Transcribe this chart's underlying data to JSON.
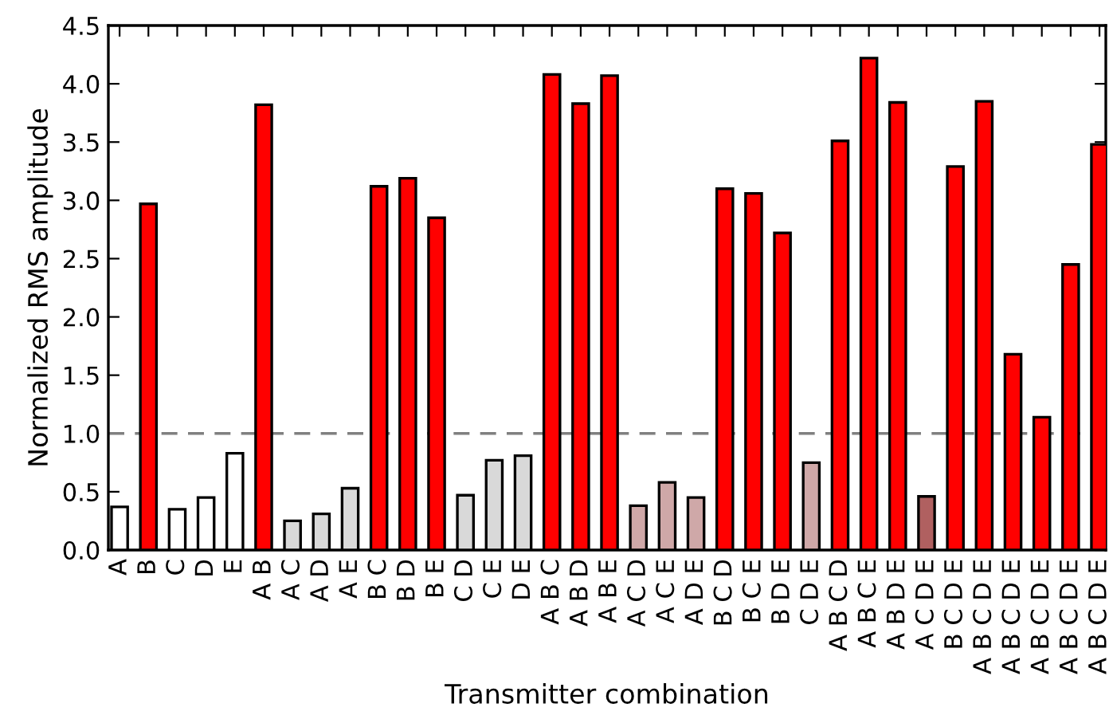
{
  "chart_data": {
    "type": "bar",
    "xlabel": "Transmitter combination",
    "ylabel": "Normalized RMS amplitude",
    "categories": [
      "A",
      "B",
      "C",
      "D",
      "E",
      "A B",
      "A C",
      "A D",
      "A E",
      "B C",
      "B D",
      "B E",
      "C D",
      "C E",
      "D E",
      "A B C",
      "A B D",
      "A B E",
      "A C D",
      "A C E",
      "A D E",
      "B C D",
      "B C E",
      "B D E",
      "C D E",
      "A B C D",
      "A B C E",
      "A B D E",
      "A C D E",
      "B C D E",
      "A B C D E",
      "A B C D E",
      "A B C D E",
      "A B C D E",
      "A B C D E"
    ],
    "values": [
      0.37,
      2.97,
      0.35,
      0.45,
      0.83,
      3.82,
      0.25,
      0.31,
      0.53,
      3.12,
      3.19,
      2.85,
      0.47,
      0.77,
      0.81,
      4.08,
      3.83,
      4.07,
      0.38,
      0.58,
      0.45,
      3.1,
      3.06,
      2.72,
      0.75,
      3.51,
      4.22,
      3.84,
      0.46,
      3.29,
      3.85,
      1.68,
      1.14,
      2.45,
      3.48
    ],
    "colors": [
      "#ffffff",
      "#ff0000",
      "#ffffff",
      "#ffffff",
      "#ffffff",
      "#ff0000",
      "#d9d9d9",
      "#d9d9d9",
      "#d9d9d9",
      "#ff0000",
      "#ff0000",
      "#ff0000",
      "#d9d9d9",
      "#d9d9d9",
      "#d9d9d9",
      "#ff0000",
      "#ff0000",
      "#ff0000",
      "#cfa8a8",
      "#cfa8a8",
      "#cfa8a8",
      "#ff0000",
      "#ff0000",
      "#ff0000",
      "#cfa8a8",
      "#ff0000",
      "#ff0000",
      "#ff0000",
      "#b06060",
      "#ff0000",
      "#ff0000",
      "#ff0000",
      "#ff0000",
      "#ff0000",
      "#ff0000"
    ],
    "ylim": [
      0,
      4.5
    ],
    "yticks": [
      {
        "value": 0,
        "label": "0.0"
      },
      {
        "value": 0.5,
        "label": "0.5"
      },
      {
        "value": 1,
        "label": "1.0"
      },
      {
        "value": 1.5,
        "label": "1.5"
      },
      {
        "value": 2,
        "label": "2.0"
      },
      {
        "value": 2.5,
        "label": "2.5"
      },
      {
        "value": 3,
        "label": "3.0"
      },
      {
        "value": 3.5,
        "label": "3.5"
      },
      {
        "value": 4,
        "label": "4.0"
      },
      {
        "value": 4.5,
        "label": "4.5"
      }
    ],
    "ref_lines": [
      {
        "axis": "y",
        "value": 1,
        "color": "#808080",
        "line_style": "dashed"
      }
    ],
    "grid": false
  }
}
